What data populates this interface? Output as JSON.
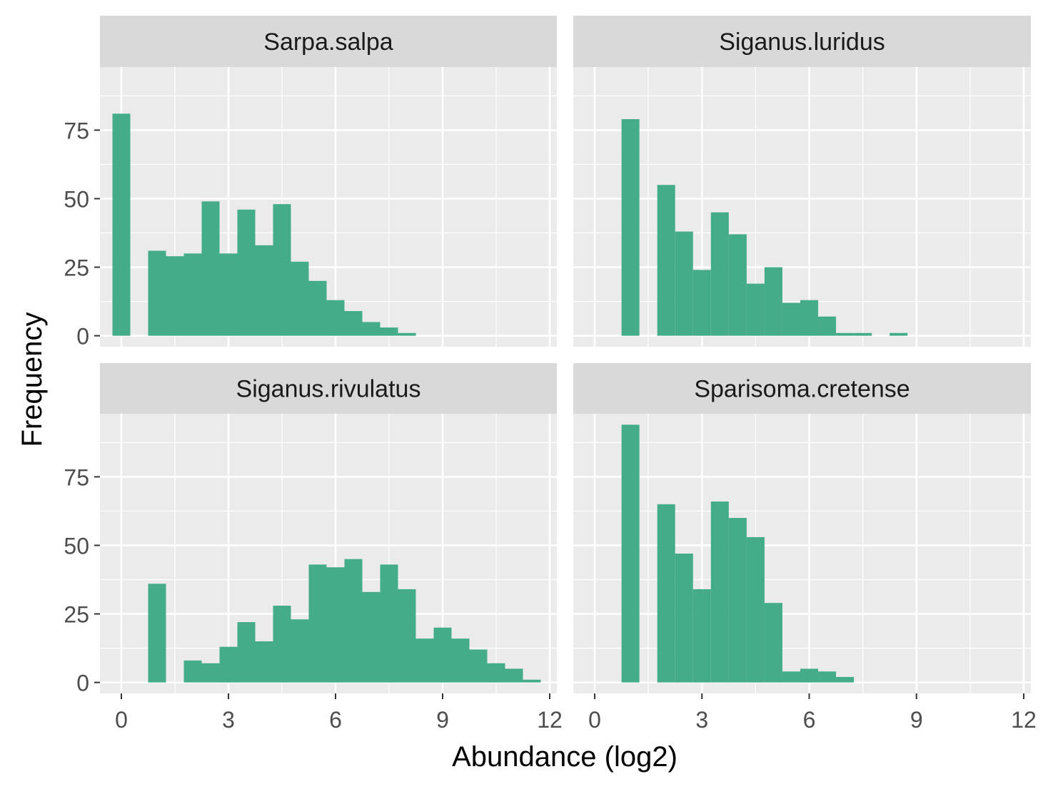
{
  "colors": {
    "bar_fill": "#45AC8A",
    "panel_bg": "#EBEBEB",
    "strip_bg": "#D9D9D9",
    "grid_major": "#FFFFFF",
    "tick_text": "#4D4D4D",
    "title_text": "#000000"
  },
  "chart_data": {
    "type": "bar",
    "subtype": "faceted histogram",
    "xlabel": "Abundance (log2)",
    "ylabel": "Frequency",
    "xlim": [
      -0.6,
      12.2
    ],
    "ylim": [
      -4,
      98
    ],
    "x_ticks": [
      0,
      3,
      6,
      9,
      12
    ],
    "x_tick_labels": [
      "0",
      "3",
      "6",
      "9",
      "12"
    ],
    "y_ticks": [
      0,
      25,
      50,
      75
    ],
    "y_tick_labels": [
      "0",
      "25",
      "50",
      "75"
    ],
    "bin_width": 0.5,
    "grid": true,
    "facets": [
      {
        "name": "Sarpa.salpa",
        "bin_centers": [
          0,
          1,
          1.5,
          2,
          2.5,
          3,
          3.5,
          4,
          4.5,
          5,
          5.5,
          6,
          6.5,
          7,
          7.5,
          8
        ],
        "values": [
          81,
          31,
          29,
          30,
          49,
          30,
          46,
          33,
          48,
          27,
          20,
          13,
          9,
          5,
          3,
          1
        ]
      },
      {
        "name": "Siganus.luridus",
        "bin_centers": [
          1,
          2,
          2.5,
          3,
          3.5,
          4,
          4.5,
          5,
          5.5,
          6,
          6.5,
          7,
          7.5,
          8.5
        ],
        "values": [
          79,
          55,
          38,
          24,
          45,
          37,
          19,
          25,
          12,
          13,
          7,
          1,
          1,
          1
        ]
      },
      {
        "name": "Siganus.rivulatus",
        "bin_centers": [
          1,
          2,
          2.5,
          3,
          3.5,
          4,
          4.5,
          5,
          5.5,
          6,
          6.5,
          7,
          7.5,
          8,
          8.5,
          9,
          9.5,
          10,
          10.5,
          11,
          11.5
        ],
        "values": [
          36,
          8,
          7,
          13,
          22,
          15,
          28,
          23,
          43,
          42,
          45,
          33,
          43,
          34,
          16,
          20,
          16,
          12,
          7,
          5,
          1
        ]
      },
      {
        "name": "Sparisoma.cretense",
        "bin_centers": [
          1,
          2,
          2.5,
          3,
          3.5,
          4,
          4.5,
          5,
          5.5,
          6,
          6.5,
          7
        ],
        "values": [
          94,
          65,
          47,
          34,
          66,
          60,
          53,
          29,
          4,
          5,
          4,
          2
        ]
      }
    ]
  }
}
